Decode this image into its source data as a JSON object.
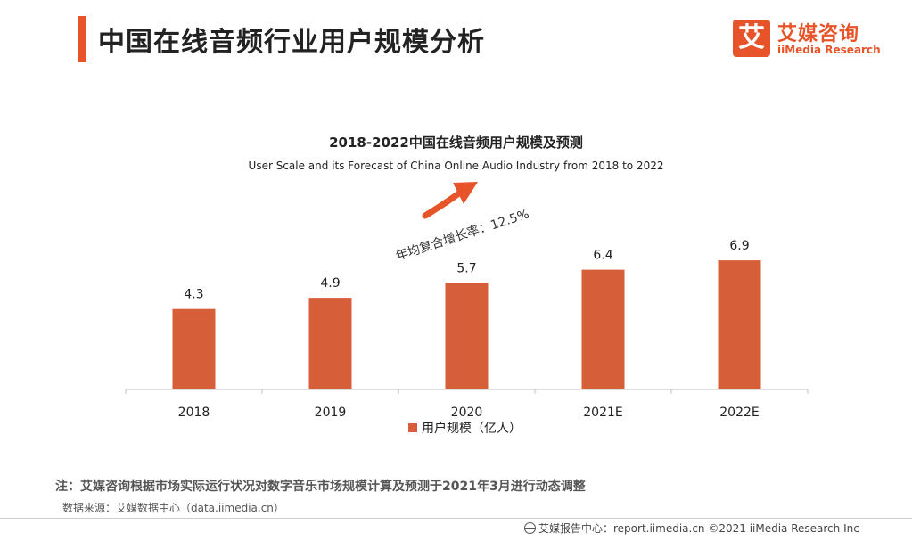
{
  "header": {
    "title": "中国在线音频行业用户规模分析",
    "logo": {
      "cn": "艾媒咨询",
      "en": "iiMedia Research",
      "mark_char": "艾"
    }
  },
  "chart_data": {
    "type": "bar",
    "title": "2018-2022中国在线音频用户规模及预测",
    "subtitle": "User Scale and its Forecast of China Online Audio Industry from 2018 to 2022",
    "categories": [
      "2018",
      "2019",
      "2020",
      "2021E",
      "2022E"
    ],
    "series": [
      {
        "name": "用户规模（亿人）",
        "values": [
          4.3,
          4.9,
          5.7,
          6.4,
          6.9
        ]
      }
    ],
    "data_labels": [
      "4.3",
      "4.9",
      "5.7",
      "6.4",
      "6.9"
    ],
    "ylim": [
      0,
      7.0
    ],
    "grid": false,
    "legend_position": "bottom",
    "annotation": "年均复合增长率：12.5%",
    "colors": {
      "bar": "#d65f3a",
      "arrow": "#e8542a"
    }
  },
  "footnotes": {
    "note": "注：艾媒咨询根据市场实际运行状况对数字音乐市场规模计算及预测于2021年3月进行动态调整",
    "source": "数据来源：艾媒数据中心（data.iimedia.cn）",
    "footer": "艾媒报告中心：report.iimedia.cn ©2021  iiMedia Research  Inc"
  },
  "colors": {
    "accent": "#e8542a"
  }
}
